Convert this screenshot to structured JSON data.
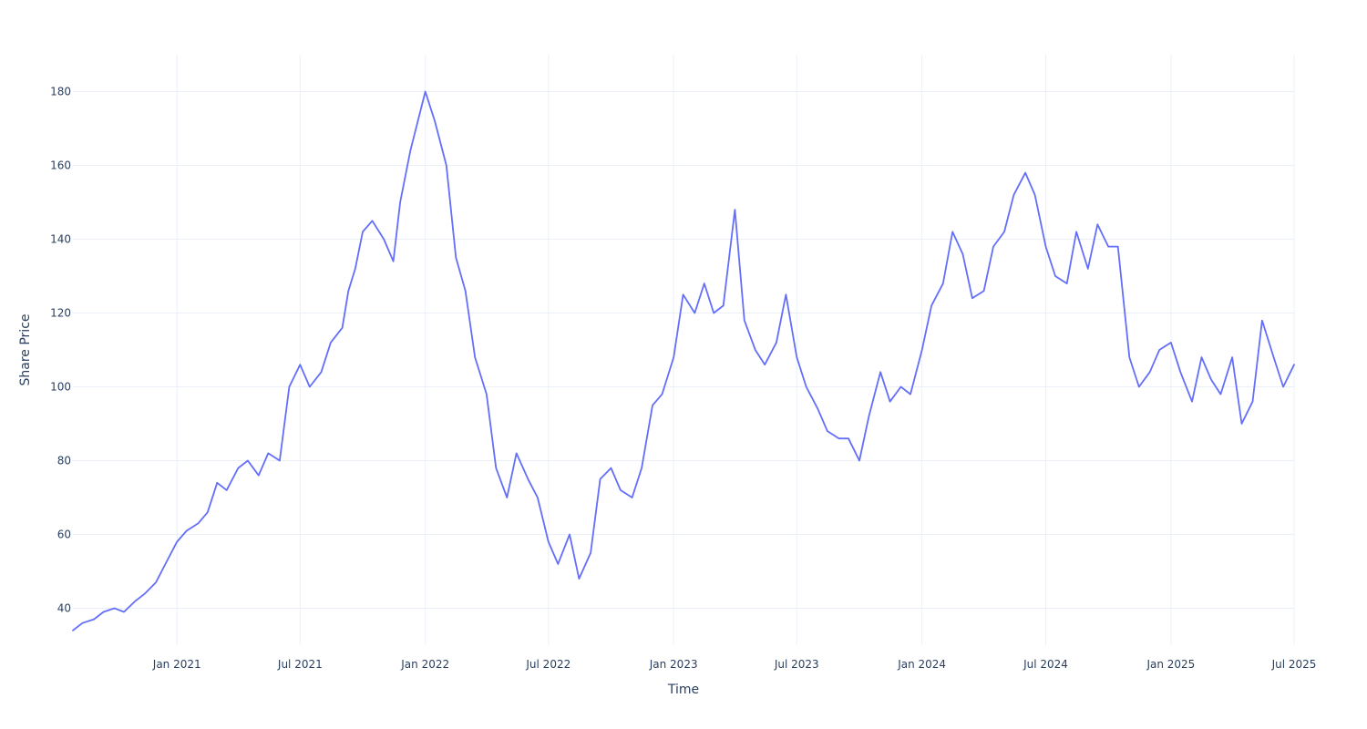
{
  "chart_data": {
    "type": "line",
    "title": "",
    "xlabel": "Time",
    "ylabel": "Share Price",
    "x_axis_type": "date",
    "xlim": [
      "2020-08-01",
      "2025-07-01"
    ],
    "ylim": [
      30,
      190
    ],
    "x_ticks": [
      "2021-01-01",
      "2021-07-01",
      "2022-01-01",
      "2022-07-01",
      "2023-01-01",
      "2023-07-01",
      "2024-01-01",
      "2024-07-01",
      "2025-01-01",
      "2025-07-01"
    ],
    "x_tick_labels": [
      "Jan 2021",
      "Jul 2021",
      "Jan 2022",
      "Jul 2022",
      "Jan 2023",
      "Jul 2023",
      "Jan 2024",
      "Jul 2024",
      "Jan 2025",
      "Jul 2025"
    ],
    "y_ticks": [
      40,
      60,
      80,
      100,
      120,
      140,
      160,
      180
    ],
    "y_tick_labels": [
      "40",
      "60",
      "80",
      "100",
      "120",
      "140",
      "160",
      "180"
    ],
    "grid": true,
    "line_color": "#636efa",
    "series": [
      {
        "x": [
          "2020-08-01",
          "2020-08-15",
          "2020-09-01",
          "2020-09-15",
          "2020-10-01",
          "2020-10-15",
          "2020-11-01",
          "2020-11-15",
          "2020-12-01",
          "2020-12-15",
          "2021-01-01",
          "2021-01-15",
          "2021-02-01",
          "2021-02-15",
          "2021-03-01",
          "2021-03-15",
          "2021-04-01",
          "2021-04-15",
          "2021-05-01",
          "2021-05-15",
          "2021-06-01",
          "2021-06-15",
          "2021-07-01",
          "2021-07-15",
          "2021-08-01",
          "2021-08-15",
          "2021-09-01",
          "2021-09-10",
          "2021-09-20",
          "2021-10-01",
          "2021-10-15",
          "2021-11-01",
          "2021-11-15",
          "2021-11-25",
          "2021-12-10",
          "2022-01-01",
          "2022-01-15",
          "2022-02-01",
          "2022-02-15",
          "2022-03-01",
          "2022-03-15",
          "2022-04-01",
          "2022-04-15",
          "2022-05-01",
          "2022-05-15",
          "2022-06-01",
          "2022-06-15",
          "2022-07-01",
          "2022-07-15",
          "2022-08-01",
          "2022-08-15",
          "2022-09-01",
          "2022-09-15",
          "2022-10-01",
          "2022-10-15",
          "2022-11-01",
          "2022-11-15",
          "2022-12-01",
          "2022-12-15",
          "2023-01-01",
          "2023-01-15",
          "2023-02-01",
          "2023-02-15",
          "2023-03-01",
          "2023-03-15",
          "2023-04-01",
          "2023-04-15",
          "2023-05-01",
          "2023-05-15",
          "2023-06-01",
          "2023-06-15",
          "2023-07-01",
          "2023-07-15",
          "2023-08-01",
          "2023-08-15",
          "2023-09-01",
          "2023-09-15",
          "2023-10-01",
          "2023-10-15",
          "2023-11-01",
          "2023-11-15",
          "2023-12-01",
          "2023-12-15",
          "2024-01-01",
          "2024-01-15",
          "2024-02-01",
          "2024-02-15",
          "2024-03-01",
          "2024-03-15",
          "2024-04-01",
          "2024-04-15",
          "2024-05-01",
          "2024-05-15",
          "2024-06-01",
          "2024-06-15",
          "2024-07-01",
          "2024-07-15",
          "2024-08-01",
          "2024-08-15",
          "2024-09-01",
          "2024-09-15",
          "2024-10-01",
          "2024-10-15",
          "2024-11-01",
          "2024-11-15",
          "2024-12-01",
          "2024-12-15",
          "2025-01-01",
          "2025-01-15",
          "2025-02-01",
          "2025-02-15",
          "2025-03-01",
          "2025-03-15",
          "2025-04-01",
          "2025-04-15",
          "2025-05-01",
          "2025-05-15",
          "2025-06-01",
          "2025-06-15",
          "2025-07-01"
        ],
        "y": [
          34,
          36,
          37,
          39,
          40,
          39,
          42,
          44,
          47,
          52,
          58,
          61,
          63,
          66,
          74,
          72,
          78,
          80,
          76,
          82,
          80,
          100,
          106,
          100,
          104,
          112,
          116,
          126,
          132,
          142,
          145,
          140,
          134,
          150,
          164,
          180,
          172,
          160,
          135,
          126,
          108,
          98,
          78,
          70,
          82,
          75,
          70,
          58,
          52,
          60,
          48,
          55,
          75,
          78,
          72,
          70,
          78,
          95,
          98,
          108,
          125,
          120,
          128,
          120,
          122,
          148,
          118,
          110,
          106,
          112,
          125,
          108,
          100,
          94,
          88,
          86,
          86,
          80,
          92,
          104,
          96,
          100,
          98,
          110,
          122,
          128,
          142,
          136,
          124,
          126,
          138,
          142,
          152,
          158,
          152,
          138,
          130,
          128,
          142,
          132,
          144,
          138,
          138,
          108,
          100,
          104,
          110,
          112,
          104,
          96,
          108,
          102,
          98,
          108,
          90,
          96,
          118,
          108,
          100,
          106
        ]
      }
    ]
  }
}
